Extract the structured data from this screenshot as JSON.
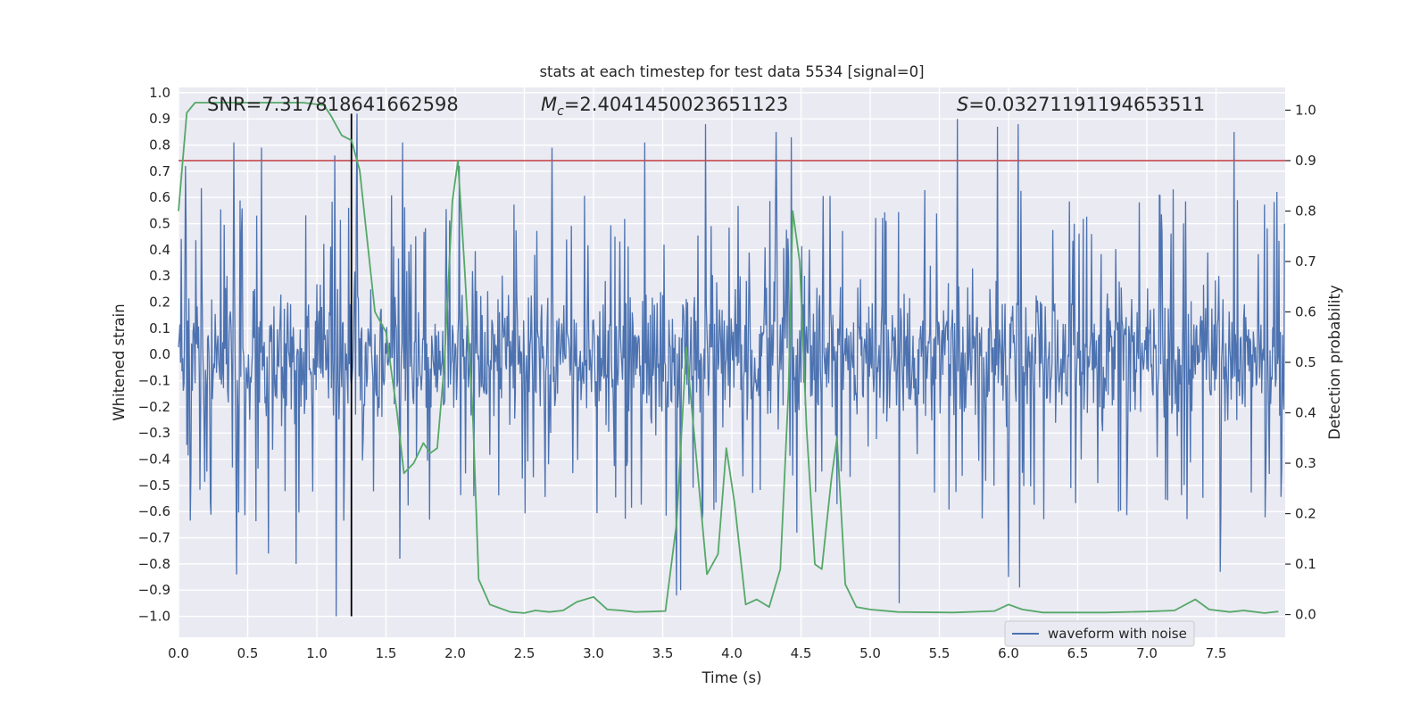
{
  "chart_data": {
    "type": "line",
    "title": "stats at each timestep for test data 5534 [signal=0]",
    "xlabel": "Time (s)",
    "ylabel_left": "Whitened strain",
    "ylabel_right": "Detection probability",
    "xlim": [
      0,
      8
    ],
    "ylim_left": [
      -1.08,
      1.02
    ],
    "ylim_right": [
      -0.045,
      1.045
    ],
    "x_ticks": [
      0.0,
      0.5,
      1.0,
      1.5,
      2.0,
      2.5,
      3.0,
      3.5,
      4.0,
      4.5,
      5.0,
      5.5,
      6.0,
      6.5,
      7.0,
      7.5
    ],
    "x_tick_labels": [
      "0.0",
      "0.5",
      "1.0",
      "1.5",
      "2.0",
      "2.5",
      "3.0",
      "3.5",
      "4.0",
      "4.5",
      "5.0",
      "5.5",
      "6.0",
      "6.5",
      "7.0",
      "7.5"
    ],
    "y_left_ticks": [
      1.0,
      0.9,
      0.8,
      0.7,
      0.6,
      0.5,
      0.4,
      0.3,
      0.2,
      0.1,
      0.0,
      -0.1,
      -0.2,
      -0.3,
      -0.4,
      -0.5,
      -0.6,
      -0.7,
      -0.8,
      -0.9,
      -1.0
    ],
    "y_left_tick_labels": [
      "1.0",
      "0.9",
      "0.8",
      "0.7",
      "0.6",
      "0.5",
      "0.4",
      "0.3",
      "0.2",
      "0.1",
      "0.0",
      "−0.1",
      "−0.2",
      "−0.3",
      "−0.4",
      "−0.5",
      "−0.6",
      "−0.7",
      "−0.8",
      "−0.9",
      "−1.0"
    ],
    "y_right_ticks": [
      1.0,
      0.9,
      0.8,
      0.7,
      0.6,
      0.5,
      0.4,
      0.3,
      0.2,
      0.1,
      0.0
    ],
    "y_right_tick_labels": [
      "1.0",
      "0.9",
      "0.8",
      "0.7",
      "0.6",
      "0.5",
      "0.4",
      "0.3",
      "0.2",
      "0.1",
      "0.0"
    ],
    "grid": true,
    "background": "#eaeaf2",
    "annotations": {
      "snr": "SNR=7.317818641662598",
      "mc_symbol": "M",
      "mc_subscript": "c",
      "mc_value": "=2.4041450023651123",
      "s_symbol": "S",
      "s_value": "=0.03271191194653511"
    },
    "legend": {
      "entries": [
        "waveform with noise"
      ],
      "placement": "lower-right"
    },
    "series": [
      {
        "name": "waveform with noise",
        "axis": "left",
        "color": "#4c72b0",
        "kind": "noise",
        "envelope_hint": {
          "typical_max": 0.4,
          "typical_min": -0.42
        },
        "spikes": [
          {
            "x": 0.05,
            "y": 0.72
          },
          {
            "x": 0.4,
            "y": 0.81
          },
          {
            "x": 0.42,
            "y": -0.84
          },
          {
            "x": 0.6,
            "y": 0.79
          },
          {
            "x": 0.65,
            "y": -0.76
          },
          {
            "x": 0.85,
            "y": -0.8
          },
          {
            "x": 1.13,
            "y": 0.76
          },
          {
            "x": 1.14,
            "y": -1.0
          },
          {
            "x": 1.29,
            "y": 0.92
          },
          {
            "x": 1.6,
            "y": -0.78
          },
          {
            "x": 1.62,
            "y": 0.81
          },
          {
            "x": 2.03,
            "y": 0.72
          },
          {
            "x": 2.7,
            "y": 0.79
          },
          {
            "x": 3.37,
            "y": 0.81
          },
          {
            "x": 3.6,
            "y": -0.92
          },
          {
            "x": 3.63,
            "y": -0.9
          },
          {
            "x": 3.81,
            "y": 0.88
          },
          {
            "x": 4.32,
            "y": 0.85
          },
          {
            "x": 4.43,
            "y": 0.83
          },
          {
            "x": 4.47,
            "y": -0.68
          },
          {
            "x": 5.21,
            "y": -0.95
          },
          {
            "x": 5.63,
            "y": 0.9
          },
          {
            "x": 5.92,
            "y": 0.87
          },
          {
            "x": 6.0,
            "y": -0.85
          },
          {
            "x": 6.07,
            "y": 0.88
          },
          {
            "x": 6.08,
            "y": -0.89
          },
          {
            "x": 7.53,
            "y": -0.83
          },
          {
            "x": 7.63,
            "y": 0.85
          }
        ]
      },
      {
        "name": "",
        "axis": "right",
        "color": "#55a868",
        "points": [
          [
            0.0,
            0.8
          ],
          [
            0.06,
            0.995
          ],
          [
            0.12,
            1.015
          ],
          [
            0.3,
            1.015
          ],
          [
            0.6,
            1.015
          ],
          [
            0.9,
            1.015
          ],
          [
            1.05,
            1.01
          ],
          [
            1.1,
            0.99
          ],
          [
            1.18,
            0.95
          ],
          [
            1.25,
            0.94
          ],
          [
            1.31,
            0.88
          ],
          [
            1.42,
            0.6
          ],
          [
            1.5,
            0.56
          ],
          [
            1.58,
            0.4
          ],
          [
            1.63,
            0.28
          ],
          [
            1.7,
            0.3
          ],
          [
            1.77,
            0.34
          ],
          [
            1.82,
            0.32
          ],
          [
            1.87,
            0.33
          ],
          [
            1.92,
            0.49
          ],
          [
            1.98,
            0.82
          ],
          [
            2.02,
            0.9
          ],
          [
            2.07,
            0.68
          ],
          [
            2.13,
            0.38
          ],
          [
            2.17,
            0.07
          ],
          [
            2.25,
            0.02
          ],
          [
            2.3,
            0.015
          ],
          [
            2.4,
            0.005
          ],
          [
            2.5,
            0.003
          ],
          [
            2.58,
            0.008
          ],
          [
            2.68,
            0.005
          ],
          [
            2.78,
            0.008
          ],
          [
            2.88,
            0.025
          ],
          [
            3.0,
            0.035
          ],
          [
            3.1,
            0.01
          ],
          [
            3.2,
            0.008
          ],
          [
            3.3,
            0.005
          ],
          [
            3.42,
            0.006
          ],
          [
            3.52,
            0.007
          ],
          [
            3.6,
            0.18
          ],
          [
            3.67,
            0.53
          ],
          [
            3.75,
            0.29
          ],
          [
            3.82,
            0.08
          ],
          [
            3.9,
            0.12
          ],
          [
            3.96,
            0.33
          ],
          [
            4.02,
            0.22
          ],
          [
            4.1,
            0.02
          ],
          [
            4.18,
            0.03
          ],
          [
            4.27,
            0.015
          ],
          [
            4.35,
            0.09
          ],
          [
            4.41,
            0.45
          ],
          [
            4.44,
            0.8
          ],
          [
            4.49,
            0.7
          ],
          [
            4.54,
            0.37
          ],
          [
            4.6,
            0.1
          ],
          [
            4.65,
            0.09
          ],
          [
            4.72,
            0.27
          ],
          [
            4.76,
            0.35
          ],
          [
            4.82,
            0.06
          ],
          [
            4.9,
            0.015
          ],
          [
            5.0,
            0.01
          ],
          [
            5.2,
            0.005
          ],
          [
            5.6,
            0.004
          ],
          [
            5.9,
            0.007
          ],
          [
            6.0,
            0.02
          ],
          [
            6.1,
            0.01
          ],
          [
            6.25,
            0.004
          ],
          [
            6.7,
            0.004
          ],
          [
            7.0,
            0.006
          ],
          [
            7.2,
            0.008
          ],
          [
            7.35,
            0.03
          ],
          [
            7.45,
            0.01
          ],
          [
            7.6,
            0.005
          ],
          [
            7.7,
            0.008
          ],
          [
            7.85,
            0.003
          ],
          [
            7.95,
            0.006
          ]
        ]
      },
      {
        "name": "",
        "axis": "right",
        "color": "#c44e52",
        "kind": "threshold",
        "y": 0.9
      }
    ],
    "vertical_marker": {
      "x": 1.25,
      "color": "#000000",
      "y_range": [
        -1.0,
        0.92
      ]
    }
  }
}
